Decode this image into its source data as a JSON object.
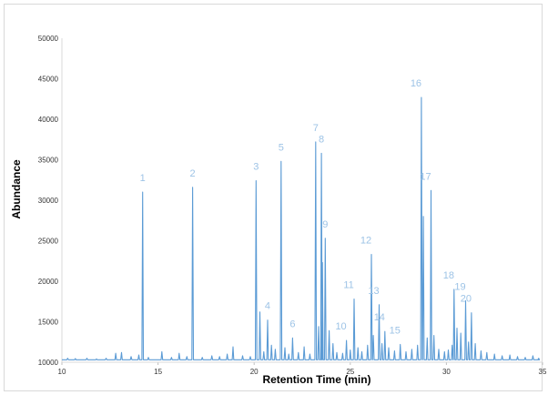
{
  "chart_data": {
    "type": "line",
    "title": "",
    "xlabel": "Retention Time (min)",
    "ylabel": "Abundance",
    "xlim": [
      10,
      35
    ],
    "ylim": [
      10000,
      50000
    ],
    "x_ticks": [
      "10",
      "15",
      "20",
      "25",
      "30",
      "35"
    ],
    "y_ticks": [
      "10000",
      "15000",
      "20000",
      "25000",
      "30000",
      "35000",
      "40000",
      "45000",
      "50000"
    ],
    "grid": false,
    "line_color": "#5b9bd5",
    "label_color": "#9dc3e6",
    "baseline": 10300,
    "peaks": [
      {
        "label": "1",
        "x": 14.2,
        "y": 31000
      },
      {
        "label": "2",
        "x": 16.8,
        "y": 31600
      },
      {
        "label": "3",
        "x": 20.1,
        "y": 32400
      },
      {
        "label": "4",
        "x": 20.7,
        "y": 15200
      },
      {
        "label": "5",
        "x": 21.4,
        "y": 34800
      },
      {
        "label": "6",
        "x": 22.0,
        "y": 13000
      },
      {
        "label": "7",
        "x": 23.2,
        "y": 37200
      },
      {
        "label": "8",
        "x": 23.5,
        "y": 35800
      },
      {
        "label": "9",
        "x": 23.7,
        "y": 25300
      },
      {
        "label": "10",
        "x": 24.8,
        "y": 12700
      },
      {
        "label": "11",
        "x": 25.2,
        "y": 17800
      },
      {
        "label": "12",
        "x": 26.1,
        "y": 23300
      },
      {
        "label": "13",
        "x": 26.5,
        "y": 17100
      },
      {
        "label": "14",
        "x": 26.8,
        "y": 13800
      },
      {
        "label": "15",
        "x": 27.6,
        "y": 12200
      },
      {
        "label": "16",
        "x": 28.7,
        "y": 42700
      },
      {
        "label": "17",
        "x": 29.2,
        "y": 31200
      },
      {
        "label": "18",
        "x": 30.4,
        "y": 19000
      },
      {
        "label": "19",
        "x": 31.0,
        "y": 17600
      },
      {
        "label": "20",
        "x": 31.3,
        "y": 16100
      }
    ],
    "minor_peaks": [
      {
        "x": 10.3,
        "y": 10500
      },
      {
        "x": 10.7,
        "y": 10450
      },
      {
        "x": 11.3,
        "y": 10500
      },
      {
        "x": 11.8,
        "y": 10400
      },
      {
        "x": 12.3,
        "y": 10500
      },
      {
        "x": 12.8,
        "y": 11100
      },
      {
        "x": 13.1,
        "y": 11200
      },
      {
        "x": 13.6,
        "y": 10700
      },
      {
        "x": 14.0,
        "y": 10900
      },
      {
        "x": 14.5,
        "y": 10600
      },
      {
        "x": 15.2,
        "y": 11300
      },
      {
        "x": 15.7,
        "y": 10600
      },
      {
        "x": 16.1,
        "y": 11100
      },
      {
        "x": 16.5,
        "y": 10700
      },
      {
        "x": 17.3,
        "y": 10600
      },
      {
        "x": 17.8,
        "y": 10800
      },
      {
        "x": 18.2,
        "y": 10700
      },
      {
        "x": 18.6,
        "y": 11000
      },
      {
        "x": 18.9,
        "y": 11900
      },
      {
        "x": 19.4,
        "y": 10800
      },
      {
        "x": 19.8,
        "y": 10700
      },
      {
        "x": 20.3,
        "y": 16200
      },
      {
        "x": 20.5,
        "y": 11300
      },
      {
        "x": 20.9,
        "y": 12100
      },
      {
        "x": 21.1,
        "y": 11600
      },
      {
        "x": 21.6,
        "y": 11800
      },
      {
        "x": 21.8,
        "y": 11000
      },
      {
        "x": 22.3,
        "y": 11200
      },
      {
        "x": 22.6,
        "y": 11900
      },
      {
        "x": 22.9,
        "y": 11000
      },
      {
        "x": 23.35,
        "y": 14400
      },
      {
        "x": 23.55,
        "y": 22300
      },
      {
        "x": 23.9,
        "y": 13900
      },
      {
        "x": 24.1,
        "y": 12300
      },
      {
        "x": 24.3,
        "y": 11200
      },
      {
        "x": 24.6,
        "y": 11100
      },
      {
        "x": 25.0,
        "y": 11500
      },
      {
        "x": 25.4,
        "y": 11800
      },
      {
        "x": 25.6,
        "y": 11300
      },
      {
        "x": 25.9,
        "y": 12100
      },
      {
        "x": 26.2,
        "y": 13300
      },
      {
        "x": 26.65,
        "y": 12300
      },
      {
        "x": 27.0,
        "y": 11800
      },
      {
        "x": 27.3,
        "y": 11400
      },
      {
        "x": 27.9,
        "y": 11300
      },
      {
        "x": 28.2,
        "y": 11600
      },
      {
        "x": 28.5,
        "y": 12100
      },
      {
        "x": 28.8,
        "y": 28000
      },
      {
        "x": 29.0,
        "y": 13000
      },
      {
        "x": 29.35,
        "y": 13300
      },
      {
        "x": 29.6,
        "y": 11600
      },
      {
        "x": 29.9,
        "y": 11300
      },
      {
        "x": 30.1,
        "y": 11500
      },
      {
        "x": 30.3,
        "y": 12100
      },
      {
        "x": 30.55,
        "y": 14200
      },
      {
        "x": 30.75,
        "y": 13600
      },
      {
        "x": 31.15,
        "y": 12500
      },
      {
        "x": 31.5,
        "y": 12300
      },
      {
        "x": 31.8,
        "y": 11400
      },
      {
        "x": 32.1,
        "y": 11200
      },
      {
        "x": 32.5,
        "y": 11000
      },
      {
        "x": 32.9,
        "y": 10800
      },
      {
        "x": 33.3,
        "y": 10900
      },
      {
        "x": 33.7,
        "y": 10700
      },
      {
        "x": 34.1,
        "y": 10600
      },
      {
        "x": 34.5,
        "y": 10800
      },
      {
        "x": 34.8,
        "y": 10500
      }
    ]
  }
}
